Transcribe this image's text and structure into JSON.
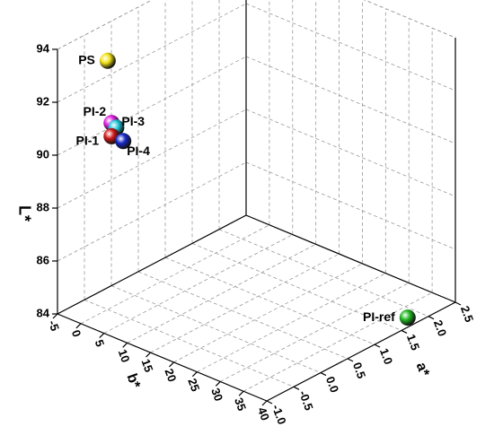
{
  "chart_data": {
    "type": "scatter3d",
    "xlabel": "b*",
    "ylabel": "a*",
    "zlabel": "L*",
    "xlim": [
      -5,
      40
    ],
    "xticks": [
      -5,
      0,
      5,
      10,
      15,
      20,
      25,
      30,
      35,
      40
    ],
    "ylim": [
      -1,
      2.5
    ],
    "yticks": [
      {
        "value": -1,
        "label": "-1.0"
      },
      -0.5,
      {
        "value": 0,
        "label": "0.0"
      },
      0.5,
      {
        "value": 1,
        "label": "1.0"
      },
      1.5,
      {
        "value": 2,
        "label": "2.0"
      },
      2.5
    ],
    "zlim": [
      84,
      94
    ],
    "zticks": [
      84,
      86,
      88,
      90,
      92,
      94
    ],
    "grid": true,
    "series": [
      {
        "name": "PS",
        "color": "#f2e21a",
        "x": 0,
        "y": -0.5,
        "z": 93.4
      },
      {
        "name": "PI-2",
        "color": "#e020e0",
        "x": 2,
        "y": -0.6,
        "z": 91.3
      },
      {
        "name": "PI-3",
        "color": "#20c8d8",
        "x": 3,
        "y": -0.6,
        "z": 91.2
      },
      {
        "name": "PI-1",
        "color": "#d01818",
        "x": 2,
        "y": -0.6,
        "z": 90.8
      },
      {
        "name": "PI-4",
        "color": "#1828c8",
        "x": 4.5,
        "y": -0.6,
        "z": 90.8
      },
      {
        "name": "PI-ref",
        "color": "#22b822",
        "x": 39,
        "y": 1.7,
        "z": 84.2
      }
    ]
  }
}
